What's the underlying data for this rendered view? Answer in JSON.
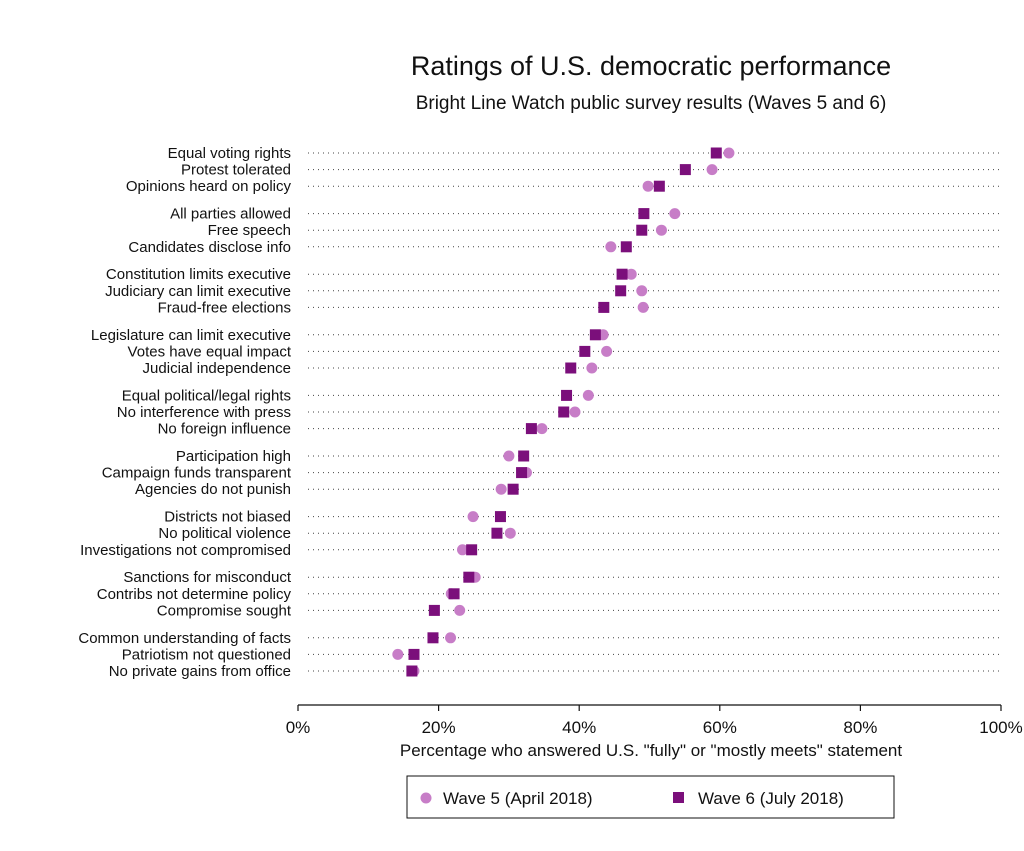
{
  "chart_data": {
    "type": "scatter",
    "title": "Ratings of U.S. democratic performance",
    "subtitle": "Bright Line Watch public survey results (Waves 5 and 6)",
    "xlabel": "Percentage who answered U.S. \"fully\" or \"mostly meets\" statement",
    "xlim": [
      0,
      100
    ],
    "xticks": [
      0,
      20,
      40,
      60,
      80,
      100
    ],
    "xtick_labels": [
      "0%",
      "20%",
      "40%",
      "60%",
      "80%",
      "100%"
    ],
    "grid": "dotted horizontal guide per category",
    "legend_position": "bottom",
    "categories": [
      "Equal voting rights",
      "Protest tolerated",
      "Opinions heard on policy",
      "All parties allowed",
      "Free speech",
      "Candidates disclose info",
      "Constitution limits executive",
      "Judiciary can limit executive",
      "Fraud-free elections",
      "Legislature can limit executive",
      "Votes have equal impact",
      "Judicial independence",
      "Equal political/legal rights",
      "No interference with press",
      "No foreign influence",
      "Participation high",
      "Campaign funds transparent",
      "Agencies do not punish",
      "Districts not biased",
      "No political violence",
      "Investigations not compromised",
      "Sanctions for misconduct",
      "Contribs not determine policy",
      "Compromise sought",
      "Common understanding of facts",
      "Patriotism not questioned",
      "No private gains from office"
    ],
    "series": [
      {
        "name": "Wave 5 (April 2018)",
        "marker": "circle",
        "color": "#c77dc7",
        "values": [
          61.3,
          58.9,
          49.8,
          53.6,
          51.7,
          44.5,
          47.4,
          48.9,
          49.1,
          43.4,
          43.9,
          41.8,
          41.3,
          39.4,
          34.7,
          30.0,
          32.5,
          28.9,
          24.9,
          30.2,
          23.4,
          25.2,
          21.8,
          23.0,
          21.7,
          14.2,
          16.5
        ]
      },
      {
        "name": "Wave 6 (July 2018)",
        "marker": "square",
        "color": "#7b0f7b",
        "values": [
          59.5,
          55.1,
          51.4,
          49.2,
          48.9,
          46.7,
          46.1,
          45.9,
          43.5,
          42.3,
          40.8,
          38.8,
          38.2,
          37.8,
          33.2,
          32.1,
          31.8,
          30.6,
          28.8,
          28.3,
          24.7,
          24.3,
          22.2,
          19.4,
          19.2,
          16.5,
          16.2
        ]
      }
    ]
  }
}
